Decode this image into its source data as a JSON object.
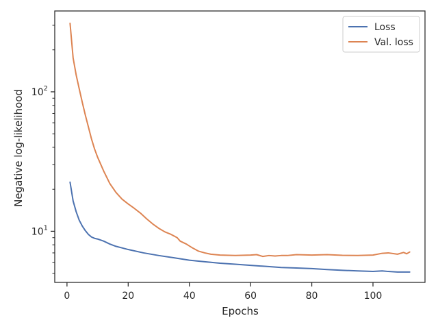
{
  "chart_data": {
    "type": "line",
    "title": "",
    "xlabel": "Epochs",
    "ylabel": "Negative log-likelihood",
    "yscale": "log",
    "xlim": [
      -4,
      117
    ],
    "ylim": [
      4.3,
      380
    ],
    "xticks": [
      0,
      20,
      40,
      60,
      80,
      100
    ],
    "xtick_labels": [
      "0",
      "20",
      "40",
      "60",
      "80",
      "100"
    ],
    "yticks": [
      10,
      100
    ],
    "ytick_labels": [
      "10¹",
      "10²"
    ],
    "grid": false,
    "legend": "top-right",
    "series": [
      {
        "name": "Loss",
        "color": "#4c72b0",
        "x": [
          1,
          2,
          3,
          4,
          5,
          6,
          7,
          8,
          9,
          10,
          12,
          14,
          16,
          18,
          20,
          25,
          30,
          35,
          40,
          45,
          50,
          55,
          60,
          65,
          70,
          75,
          80,
          85,
          90,
          95,
          100,
          103,
          105,
          108,
          110,
          112
        ],
        "y": [
          22.5,
          16.5,
          13.8,
          12.0,
          10.9,
          10.1,
          9.5,
          9.1,
          8.9,
          8.8,
          8.5,
          8.1,
          7.8,
          7.6,
          7.4,
          7.0,
          6.7,
          6.45,
          6.2,
          6.05,
          5.9,
          5.8,
          5.7,
          5.6,
          5.5,
          5.45,
          5.4,
          5.32,
          5.25,
          5.2,
          5.15,
          5.2,
          5.15,
          5.1,
          5.1,
          5.1
        ]
      },
      {
        "name": "Val. loss",
        "color": "#dd8452",
        "x": [
          1,
          2,
          3,
          4,
          5,
          6,
          7,
          8,
          9,
          10,
          12,
          14,
          16,
          18,
          20,
          22,
          24,
          26,
          28,
          30,
          32,
          34,
          36,
          37,
          39,
          41,
          43,
          45,
          47,
          50,
          55,
          60,
          62,
          64,
          66,
          68,
          70,
          72,
          75,
          80,
          85,
          90,
          95,
          100,
          103,
          105,
          108,
          110,
          111,
          112
        ],
        "y": [
          310,
          175,
          132,
          105,
          84,
          68,
          56,
          46,
          39,
          34,
          27,
          22,
          19,
          17,
          15.7,
          14.6,
          13.5,
          12.3,
          11.3,
          10.5,
          9.9,
          9.5,
          9.0,
          8.5,
          8.1,
          7.6,
          7.2,
          7.0,
          6.85,
          6.75,
          6.7,
          6.75,
          6.8,
          6.6,
          6.7,
          6.65,
          6.7,
          6.7,
          6.8,
          6.75,
          6.8,
          6.72,
          6.7,
          6.75,
          6.95,
          7.0,
          6.85,
          7.05,
          6.9,
          7.1
        ]
      }
    ]
  }
}
